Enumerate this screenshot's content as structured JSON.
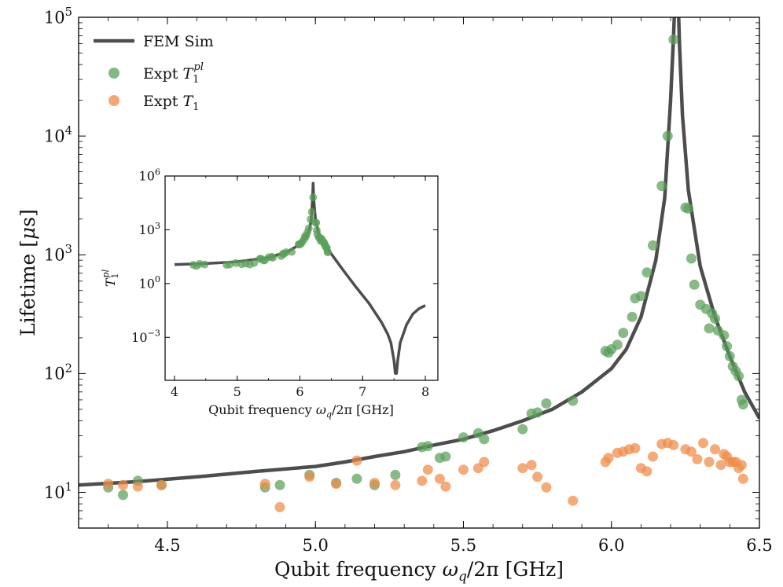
{
  "chart_data": [
    {
      "type": "scatter",
      "xlabel_main": "Qubit frequency ",
      "xlabel_sym": "ω",
      "xlabel_sub": "q",
      "xlabel_tail": "/2π [GHz]",
      "ylabel_main": "Lifetime [",
      "ylabel_sym": "μ",
      "ylabel_tail": "s]",
      "xlim": [
        4.2,
        6.5
      ],
      "ylim": [
        5,
        100000
      ],
      "yscale": "log",
      "x_ticks": [
        "4.5",
        "5.0",
        "5.5",
        "6.0",
        "6.5"
      ],
      "x_tick_values": [
        4.5,
        5.0,
        5.5,
        6.0,
        6.5
      ],
      "y_tick_values": [
        10,
        100,
        1000,
        10000,
        100000
      ],
      "y_tick_exponents": [
        "1",
        "2",
        "3",
        "4",
        "5"
      ],
      "y_tick_base": "10",
      "legend_position": "top-left",
      "legend": [
        {
          "label": "FEM Sim",
          "kind": "line"
        },
        {
          "label_main": "Expt ",
          "label_sym": "T",
          "label_sub": "1",
          "label_sup": "pl",
          "kind": "marker"
        },
        {
          "label_main": "Expt ",
          "label_sym": "T",
          "label_sub": "1",
          "kind": "marker"
        }
      ],
      "series": [
        {
          "kind": "line",
          "color": "#4d4d4d",
          "x": [
            4.2,
            4.4,
            4.6,
            4.8,
            5.0,
            5.1,
            5.2,
            5.3,
            5.4,
            5.5,
            5.6,
            5.7,
            5.8,
            5.9,
            6.0,
            6.05,
            6.1,
            6.15,
            6.18,
            6.2,
            6.21,
            6.215,
            6.225,
            6.23,
            6.24,
            6.26,
            6.3,
            6.35,
            6.4,
            6.45,
            6.5
          ],
          "y": [
            11.5,
            12.3,
            13.5,
            15,
            16.5,
            18,
            20,
            22,
            25,
            28,
            33,
            40,
            50,
            70,
            110,
            160,
            300,
            900,
            3000,
            20000,
            70000,
            150000,
            150000,
            60000,
            15000,
            3500,
            800,
            300,
            140,
            70,
            42
          ]
        },
        {
          "kind": "scatter",
          "color": "#5aa05a",
          "x": [
            4.3,
            4.35,
            4.4,
            4.48,
            4.83,
            4.88,
            4.98,
            5.07,
            5.14,
            5.2,
            5.27,
            5.36,
            5.38,
            5.42,
            5.44,
            5.5,
            5.55,
            5.57,
            5.7,
            5.73,
            5.75,
            5.78,
            5.87,
            5.98,
            5.99,
            6.0,
            6.02,
            6.04,
            6.07,
            6.08,
            6.1,
            6.12,
            6.14,
            6.17,
            6.19,
            6.21,
            6.25,
            6.26,
            6.27,
            6.28,
            6.3,
            6.32,
            6.33,
            6.34,
            6.35,
            6.36,
            6.38,
            6.39,
            6.4,
            6.41,
            6.42,
            6.43,
            6.44,
            6.445
          ],
          "y": [
            11,
            9.5,
            12.5,
            11.5,
            11,
            11.5,
            14,
            12,
            13,
            11.5,
            14,
            24,
            24.5,
            19.5,
            20,
            29,
            31.5,
            28,
            34,
            46,
            47,
            56,
            59,
            155,
            150,
            160,
            175,
            220,
            300,
            430,
            450,
            710,
            1200,
            3800,
            10000,
            65000,
            2500,
            2450,
            930,
            560,
            380,
            350,
            240,
            320,
            290,
            230,
            210,
            170,
            140,
            115,
            105,
            95,
            60,
            55
          ]
        },
        {
          "kind": "scatter",
          "color": "#f08a45",
          "x": [
            4.3,
            4.35,
            4.4,
            4.48,
            4.83,
            4.88,
            4.98,
            5.07,
            5.14,
            5.2,
            5.27,
            5.36,
            5.38,
            5.42,
            5.44,
            5.5,
            5.55,
            5.57,
            5.7,
            5.73,
            5.75,
            5.78,
            5.87,
            5.98,
            5.99,
            6.02,
            6.04,
            6.06,
            6.08,
            6.1,
            6.12,
            6.14,
            6.17,
            6.19,
            6.21,
            6.25,
            6.27,
            6.29,
            6.31,
            6.33,
            6.35,
            6.37,
            6.38,
            6.39,
            6.4,
            6.41,
            6.42,
            6.43,
            6.44,
            6.445
          ],
          "y": [
            11.8,
            11.5,
            11.2,
            11.5,
            11.8,
            7.5,
            13.5,
            11.8,
            18.5,
            12,
            11.5,
            12.5,
            15.5,
            13,
            11.2,
            15.5,
            16,
            18,
            16,
            17,
            13.5,
            11,
            8.5,
            18,
            19.5,
            21.5,
            22,
            23,
            23.5,
            16,
            15,
            20,
            25.5,
            26,
            25,
            23,
            22,
            19,
            26,
            18,
            23,
            17,
            21,
            20,
            18,
            18,
            18,
            16,
            17,
            13
          ]
        }
      ]
    },
    {
      "type": "scatter",
      "xlabel_main": "Qubit frequency ",
      "xlabel_sym": "ω",
      "xlabel_sub": "q",
      "xlabel_tail": "/2π [GHz]",
      "ylabel_sym": "T",
      "ylabel_sub": "1",
      "ylabel_sup": "pl",
      "xlim": [
        3.85,
        8.2
      ],
      "ylim": [
        3.98e-06,
        1000000
      ],
      "yscale": "log",
      "x_ticks": [
        "4",
        "5",
        "6",
        "7",
        "8"
      ],
      "x_tick_values": [
        4,
        5,
        6,
        7,
        8
      ],
      "y_tick_values": [
        0.001,
        1,
        1000,
        1000000
      ],
      "y_tick_exponents": [
        "−3",
        "0",
        "3",
        "6"
      ],
      "y_tick_base": "10",
      "series": [
        {
          "kind": "line",
          "color": "#4d4d4d",
          "x": [
            4.0,
            4.5,
            5.0,
            5.5,
            5.8,
            6.0,
            6.1,
            6.15,
            6.18,
            6.2,
            6.21,
            6.22,
            6.25,
            6.3,
            6.4,
            6.5,
            6.7,
            6.9,
            7.1,
            7.3,
            7.4,
            7.45,
            7.5,
            7.52,
            7.54,
            7.56,
            7.6,
            7.7,
            7.8,
            7.9,
            8.0
          ],
          "y": [
            11.5,
            13,
            16.5,
            28,
            60,
            150,
            400,
            1000,
            3500,
            50000,
            400000,
            50000,
            3500,
            600,
            130,
            45,
            5,
            0.6,
            0.08,
            0.007,
            0.0015,
            0.0005,
            5e-05,
            9.8e-06,
            9.8e-06,
            5e-05,
            0.0005,
            0.005,
            0.02,
            0.04,
            0.06
          ]
        },
        {
          "kind": "scatter",
          "color": "#5aa05a",
          "x": [
            4.3,
            4.35,
            4.4,
            4.48,
            4.83,
            4.88,
            4.98,
            5.07,
            5.14,
            5.2,
            5.27,
            5.36,
            5.38,
            5.42,
            5.44,
            5.5,
            5.55,
            5.57,
            5.7,
            5.73,
            5.75,
            5.78,
            5.87,
            5.98,
            5.99,
            6.0,
            6.02,
            6.04,
            6.07,
            6.08,
            6.1,
            6.12,
            6.14,
            6.17,
            6.19,
            6.21,
            6.25,
            6.26,
            6.27,
            6.28,
            6.3,
            6.32,
            6.33,
            6.34,
            6.35,
            6.36,
            6.38,
            6.39,
            6.4,
            6.41,
            6.42,
            6.43,
            6.44,
            6.445
          ],
          "y": [
            11,
            9.5,
            12.5,
            11.5,
            11,
            11.5,
            14,
            12,
            13,
            11.5,
            14,
            24,
            24.5,
            19.5,
            20,
            29,
            31.5,
            28,
            34,
            46,
            47,
            56,
            59,
            155,
            150,
            160,
            175,
            220,
            300,
            430,
            450,
            710,
            1200,
            3800,
            10000,
            65000,
            2500,
            2450,
            930,
            560,
            380,
            350,
            240,
            320,
            290,
            230,
            210,
            170,
            140,
            115,
            105,
            95,
            60,
            55
          ]
        }
      ]
    }
  ]
}
